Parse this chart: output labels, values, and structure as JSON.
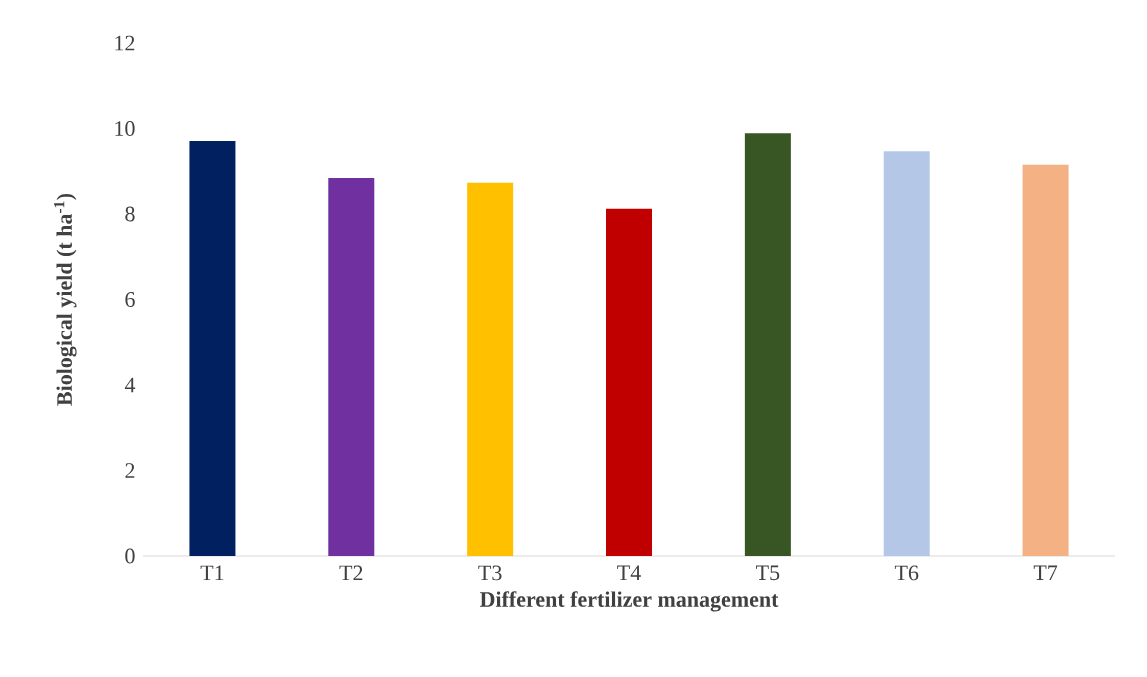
{
  "chart_data": {
    "type": "bar",
    "xlabel": "Different fertilizer management",
    "ylabel": "Biological yield (t ha$^{-1}$)",
    "categories": [
      "T1",
      "T2",
      "T3",
      "T4",
      "T5",
      "T6",
      "T7"
    ],
    "values": [
      9.71,
      8.84,
      8.73,
      8.12,
      9.89,
      9.47,
      9.15
    ],
    "colors": [
      "#002060",
      "#7030a0",
      "#ffc000",
      "#c00000",
      "#375623",
      "#b4c7e7",
      "#f4b183"
    ],
    "ylim": [
      0,
      12
    ],
    "yticks": [
      0,
      2,
      4,
      6,
      8,
      10,
      12
    ]
  }
}
